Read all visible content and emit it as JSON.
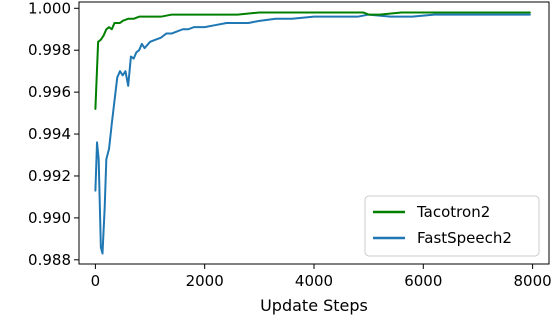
{
  "chart_data": {
    "type": "line",
    "title": "",
    "xlabel": "Update Steps",
    "ylabel": "",
    "xlim": [
      -300,
      8300
    ],
    "ylim": [
      0.9878,
      1.0003
    ],
    "x_ticks": [
      0,
      2000,
      4000,
      6000,
      8000
    ],
    "x_tick_labels": [
      "0",
      "2000",
      "4000",
      "6000",
      "8000"
    ],
    "y_ticks": [
      0.988,
      0.99,
      0.992,
      0.994,
      0.996,
      0.998,
      1.0
    ],
    "y_tick_labels": [
      "0.988",
      "0.990",
      "0.992",
      "0.994",
      "0.996",
      "0.998",
      "1.000"
    ],
    "grid": false,
    "legend_position": "bottom-right",
    "series": [
      {
        "name": "Tacotron2",
        "color": "#008000",
        "x": [
          0,
          50,
          100,
          150,
          200,
          250,
          300,
          350,
          400,
          450,
          500,
          600,
          700,
          800,
          900,
          1000,
          1200,
          1400,
          1600,
          1800,
          2000,
          2300,
          2600,
          3000,
          3400,
          3800,
          4200,
          4600,
          4900,
          5000,
          5200,
          5600,
          6000,
          6400,
          6800,
          7200,
          7600,
          7950
        ],
        "y": [
          0.9952,
          0.9984,
          0.9985,
          0.9987,
          0.999,
          0.9991,
          0.999,
          0.9993,
          0.9993,
          0.9993,
          0.9994,
          0.9995,
          0.9995,
          0.9996,
          0.9996,
          0.9996,
          0.9996,
          0.9997,
          0.9997,
          0.9997,
          0.9997,
          0.9997,
          0.9997,
          0.9998,
          0.9998,
          0.9998,
          0.9998,
          0.9998,
          0.9998,
          0.9997,
          0.9997,
          0.9998,
          0.9998,
          0.9998,
          0.9998,
          0.9998,
          0.9998,
          0.9998
        ]
      },
      {
        "name": "FastSpeech2",
        "color": "#1f77b4",
        "x": [
          0,
          30,
          60,
          100,
          130,
          170,
          200,
          250,
          300,
          350,
          400,
          450,
          500,
          550,
          600,
          650,
          700,
          750,
          800,
          850,
          900,
          1000,
          1100,
          1200,
          1300,
          1400,
          1500,
          1600,
          1700,
          1800,
          2000,
          2200,
          2400,
          2600,
          2800,
          3000,
          3300,
          3600,
          4000,
          4400,
          4800,
          5000,
          5400,
          5800,
          6200,
          6600,
          7000,
          7400,
          7800,
          7950
        ],
        "y": [
          0.9913,
          0.9936,
          0.9928,
          0.9886,
          0.9883,
          0.9905,
          0.9928,
          0.9933,
          0.9945,
          0.9956,
          0.9967,
          0.997,
          0.9968,
          0.997,
          0.9963,
          0.9977,
          0.9976,
          0.9979,
          0.998,
          0.9983,
          0.9981,
          0.9984,
          0.9985,
          0.9986,
          0.9988,
          0.9988,
          0.9989,
          0.999,
          0.999,
          0.9991,
          0.9991,
          0.9992,
          0.9993,
          0.9993,
          0.9993,
          0.9994,
          0.9995,
          0.9995,
          0.9996,
          0.9996,
          0.9996,
          0.9997,
          0.9996,
          0.9996,
          0.9997,
          0.9997,
          0.9997,
          0.9997,
          0.9997,
          0.9997
        ]
      }
    ]
  }
}
